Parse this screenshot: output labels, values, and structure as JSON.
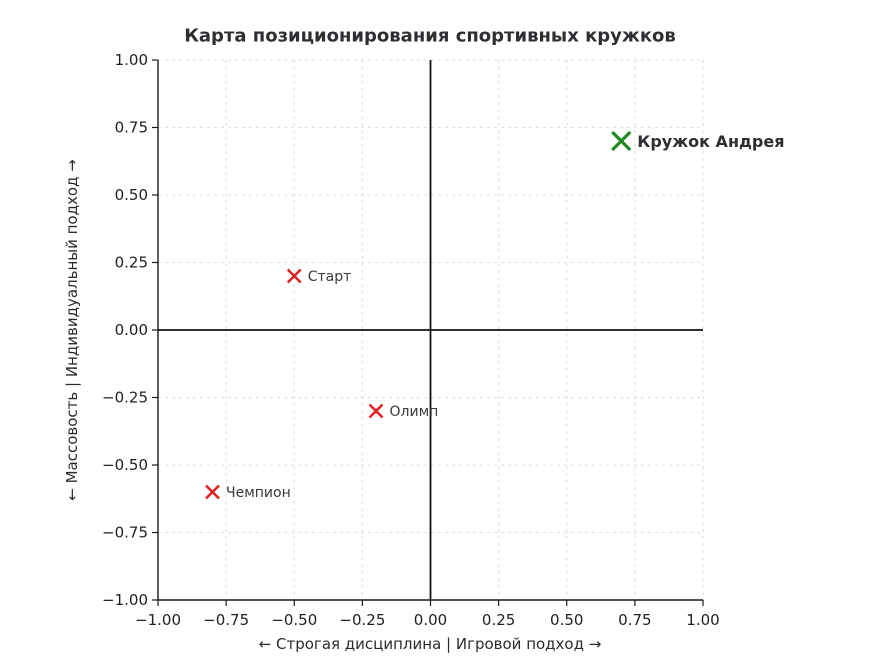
{
  "figure": {
    "background": "#ffffff"
  },
  "chart_data": {
    "type": "scatter",
    "title": "Карта позиционирования спортивных кружков",
    "xlabel": "← Строгая дисциплина | Игровой подход →",
    "ylabel": "← Массовость | Индивидуальный подход →",
    "xlim": [
      -1,
      1
    ],
    "ylim": [
      -1,
      1
    ],
    "xticks": [
      -1,
      -0.75,
      -0.5,
      -0.25,
      0,
      0.25,
      0.5,
      0.75,
      1
    ],
    "yticks": [
      -1,
      -0.75,
      -0.5,
      -0.25,
      0,
      0.25,
      0.5,
      0.75,
      1
    ],
    "tick_format_decimals": 2,
    "grid": {
      "visible": true,
      "line_style": "dashed",
      "color": "#e2dce6"
    },
    "zero_lines": {
      "x": 0,
      "y": 0,
      "color": "#111111"
    },
    "axis_color": "#1a1a1a",
    "tick_label_color": "#1f1f1f",
    "legend": null,
    "points": [
      {
        "label": "Старт",
        "x": -0.5,
        "y": 0.2,
        "marker": "x",
        "color": "#dd2222",
        "label_color": "#3a3a3a",
        "label_bold": false,
        "marker_half_px": 6.5,
        "marker_stroke_px": 2.6,
        "label_font_px": 14
      },
      {
        "label": "Олимп",
        "x": -0.2,
        "y": -0.3,
        "marker": "x",
        "color": "#dd2222",
        "label_color": "#3a3a3a",
        "label_bold": false,
        "marker_half_px": 6.5,
        "marker_stroke_px": 2.6,
        "label_font_px": 14
      },
      {
        "label": "Чемпион",
        "x": -0.8,
        "y": -0.6,
        "marker": "x",
        "color": "#dd2222",
        "label_color": "#3a3a3a",
        "label_bold": false,
        "marker_half_px": 6.5,
        "marker_stroke_px": 2.6,
        "label_font_px": 14
      },
      {
        "label": "Кружок Андрея",
        "x": 0.7,
        "y": 0.7,
        "marker": "x",
        "color": "#1f8a1f",
        "label_color": "#2e2e33",
        "label_bold": true,
        "marker_half_px": 9,
        "marker_stroke_px": 3.2,
        "label_font_px": 16
      }
    ]
  }
}
